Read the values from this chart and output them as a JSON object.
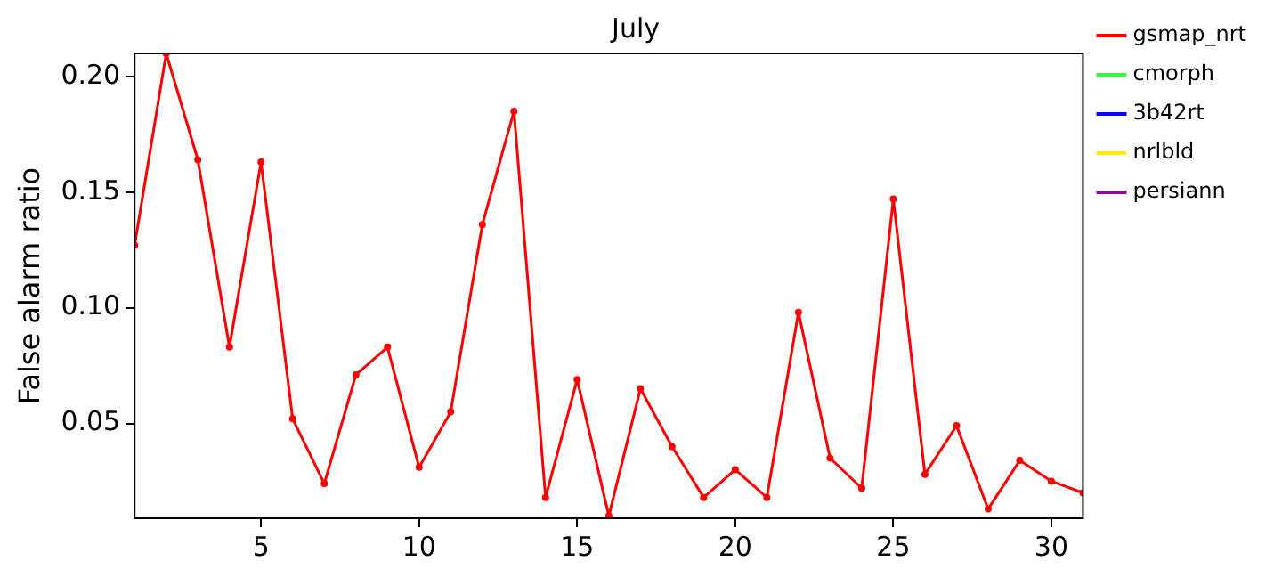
{
  "chart_data": {
    "type": "line",
    "title": "July",
    "ylabel": "False alarm ratio",
    "x": [
      1,
      2,
      3,
      4,
      5,
      6,
      7,
      8,
      9,
      10,
      11,
      12,
      13,
      14,
      15,
      16,
      17,
      18,
      19,
      20,
      21,
      22,
      23,
      24,
      25,
      26,
      27,
      28,
      29,
      30,
      31
    ],
    "series": [
      {
        "name": "gsmap_nrt",
        "color": "#ff0000",
        "values": [
          0.127,
          0.21,
          0.164,
          0.083,
          0.163,
          0.052,
          0.024,
          0.071,
          0.083,
          0.031,
          0.055,
          0.136,
          0.185,
          0.018,
          0.069,
          0.01,
          0.065,
          0.04,
          0.018,
          0.03,
          0.018,
          0.098,
          0.035,
          0.022,
          0.147,
          0.028,
          0.049,
          0.013,
          0.034,
          0.025,
          0.02
        ]
      },
      {
        "name": "cmorph",
        "color": "#33ff33",
        "values": [
          null,
          null,
          null,
          null,
          null,
          null,
          null,
          null,
          null,
          null,
          null,
          null,
          null,
          null,
          null,
          null,
          null,
          null,
          null,
          null,
          null,
          null,
          null,
          null,
          null,
          null,
          null,
          null,
          null,
          null,
          null
        ]
      },
      {
        "name": "3b42rt",
        "color": "#0000ff",
        "values": [
          null,
          null,
          null,
          null,
          null,
          null,
          null,
          null,
          null,
          null,
          null,
          null,
          null,
          null,
          null,
          null,
          null,
          null,
          null,
          null,
          null,
          null,
          null,
          null,
          null,
          null,
          null,
          null,
          null,
          null,
          null
        ]
      },
      {
        "name": "nrlbld",
        "color": "#ffee00",
        "values": [
          null,
          null,
          null,
          null,
          null,
          null,
          null,
          null,
          null,
          null,
          null,
          null,
          null,
          null,
          null,
          null,
          null,
          null,
          null,
          null,
          null,
          null,
          null,
          null,
          null,
          null,
          null,
          null,
          null,
          null,
          null
        ]
      },
      {
        "name": "persiann",
        "color": "#990099",
        "values": [
          null,
          null,
          null,
          null,
          null,
          null,
          null,
          null,
          null,
          null,
          null,
          null,
          null,
          null,
          null,
          null,
          null,
          null,
          null,
          null,
          null,
          null,
          null,
          null,
          null,
          null,
          null,
          null,
          null,
          null,
          null
        ]
      }
    ],
    "xlim": [
      1,
      31
    ],
    "xticks": [
      5,
      10,
      15,
      20,
      25,
      30
    ],
    "ylim": [
      0.009,
      0.21
    ],
    "yticks": [
      {
        "value": 0.05,
        "label": "0.05"
      },
      {
        "value": 0.1,
        "label": "0.10"
      },
      {
        "value": 0.15,
        "label": "0.15"
      },
      {
        "value": 0.2,
        "label": "0.20"
      }
    ],
    "grid": false,
    "legend": "top right",
    "marker": "circle",
    "line_style": "solid"
  }
}
